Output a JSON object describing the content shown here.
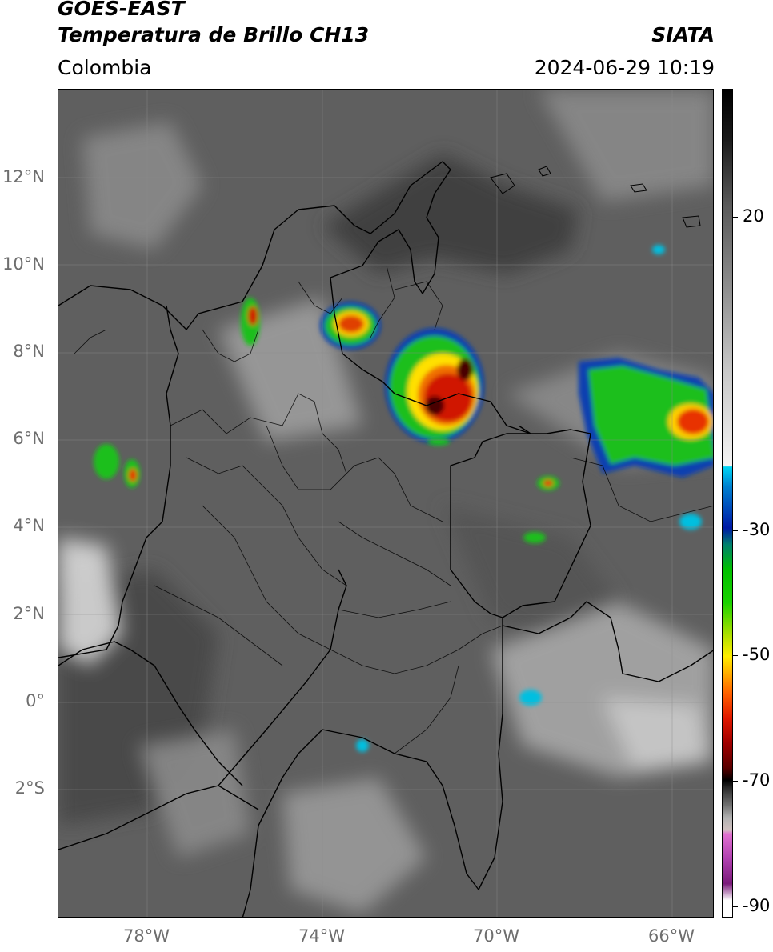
{
  "header": {
    "satellite": "GOES-EAST",
    "product": "Temperatura de Brillo CH13",
    "region": "Colombia",
    "provider": "SIATA",
    "timestamp": "2024-06-29 10:19"
  },
  "map": {
    "lat_ticks": [
      "12°N",
      "10°N",
      "8°N",
      "6°N",
      "4°N",
      "2°N",
      "0°",
      "2°S"
    ],
    "lon_ticks": [
      "78°W",
      "74°W",
      "70°W",
      "66°W"
    ]
  },
  "colorbar": {
    "labels": [
      "20",
      "-30",
      "-50",
      "-70",
      "-90"
    ],
    "colors": {
      "cyan": "#00d6f5",
      "blue": "#0019a6",
      "green": "#19d200",
      "yellow": "#ffee00",
      "orange": "#ff8800",
      "red": "#e01800",
      "darkred": "#5a0000",
      "black": "#000000",
      "pink": "#e070d0",
      "purple": "#7a1a7a"
    }
  }
}
